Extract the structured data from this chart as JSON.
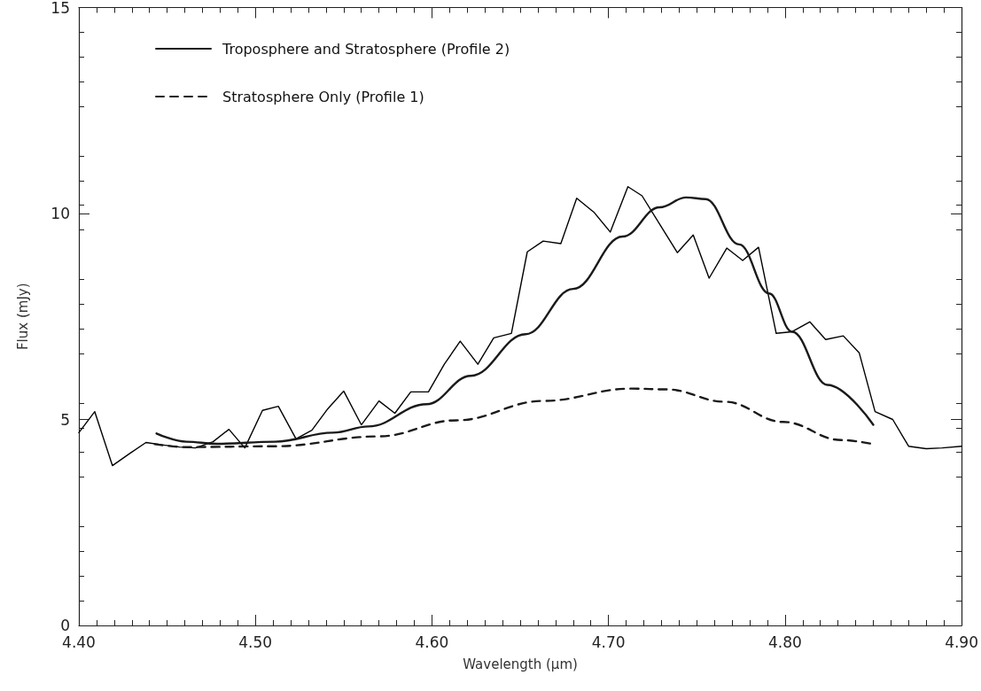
{
  "chart_data": {
    "type": "line",
    "xlabel": "Wavelength (μm)",
    "ylabel": "Flux (mJy)",
    "xlim": [
      4.4,
      4.9
    ],
    "ylim": [
      0,
      15
    ],
    "xticks": [
      {
        "value": 4.4,
        "label": "4.40"
      },
      {
        "value": 4.5,
        "label": "4.50"
      },
      {
        "value": 4.6,
        "label": "4.60"
      },
      {
        "value": 4.7,
        "label": "4.70"
      },
      {
        "value": 4.8,
        "label": "4.80"
      },
      {
        "value": 4.9,
        "label": "4.90"
      }
    ],
    "yticks": [
      0,
      5,
      10,
      15
    ],
    "grid": false,
    "legend": "top left",
    "marker": "none",
    "series": [
      {
        "color": "#000000",
        "line_style": "solid",
        "x": [
          4.4,
          4.409,
          4.419,
          4.429,
          4.438,
          4.448,
          4.457,
          4.466,
          4.476,
          4.485,
          4.494,
          4.504,
          4.513,
          4.523,
          4.532,
          4.541,
          4.55,
          4.56,
          4.57,
          4.579,
          4.588,
          4.598,
          4.607,
          4.616,
          4.626,
          4.635,
          4.645,
          4.654,
          4.663,
          4.673,
          4.682,
          4.692,
          4.701,
          4.711,
          4.719,
          4.739,
          4.748,
          4.757,
          4.767,
          4.776,
          4.785,
          4.795,
          4.804,
          4.814,
          4.823,
          4.833,
          4.842,
          4.851,
          4.861,
          4.87,
          4.88,
          4.889,
          4.9
        ],
        "values": [
          4.68,
          5.19,
          3.88,
          4.18,
          4.44,
          4.38,
          4.33,
          4.31,
          4.46,
          4.76,
          4.31,
          5.22,
          5.32,
          4.53,
          4.74,
          5.26,
          5.69,
          4.87,
          5.45,
          5.15,
          5.67,
          5.67,
          6.34,
          6.9,
          6.34,
          6.98,
          7.09,
          9.07,
          9.33,
          9.27,
          10.37,
          10.02,
          9.55,
          10.65,
          10.43,
          9.05,
          9.48,
          8.43,
          9.16,
          8.86,
          9.18,
          7.09,
          7.13,
          7.37,
          6.94,
          7.03,
          6.62,
          5.19,
          5.0,
          4.35,
          4.29,
          4.31,
          4.35
        ]
      },
      {
        "name": "Troposphere and Stratosphere (Profile 2)",
        "color": "#1a1a1a",
        "line_style": "solid",
        "x": [
          4.444,
          4.461,
          4.478,
          4.511,
          4.544,
          4.564,
          4.597,
          4.622,
          4.653,
          4.68,
          4.708,
          4.729,
          4.744,
          4.755,
          4.774,
          4.791,
          4.804,
          4.824,
          4.85
        ],
        "values": [
          4.66,
          4.46,
          4.41,
          4.46,
          4.68,
          4.83,
          5.37,
          6.06,
          7.07,
          8.17,
          9.44,
          10.15,
          10.39,
          10.35,
          9.25,
          8.06,
          7.13,
          5.84,
          4.87
        ]
      },
      {
        "name": "Stratosphere Only (Profile 1)",
        "color": "#1a1a1a",
        "line_style": "dashed",
        "x": [
          4.443,
          4.461,
          4.511,
          4.57,
          4.614,
          4.663,
          4.713,
          4.733,
          4.766,
          4.799,
          4.832,
          4.85
        ],
        "values": [
          4.4,
          4.33,
          4.35,
          4.59,
          4.98,
          5.45,
          5.75,
          5.73,
          5.43,
          4.94,
          4.5,
          4.4
        ]
      }
    ]
  }
}
